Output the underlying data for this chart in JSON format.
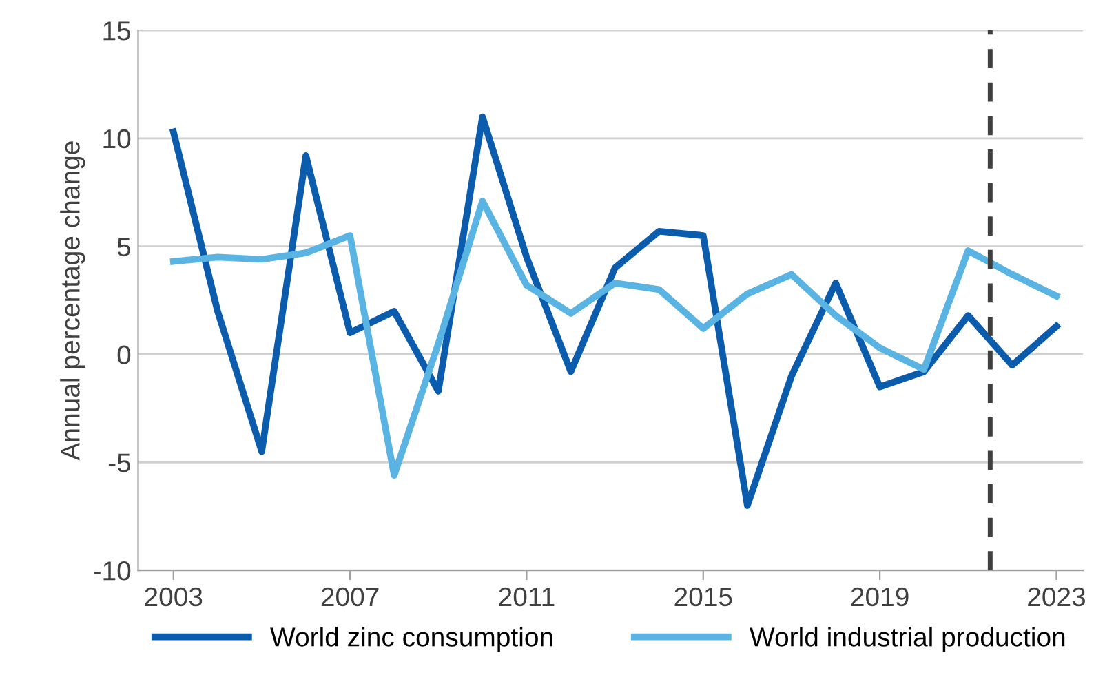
{
  "chart_data": {
    "type": "line",
    "ylabel": "Annual percentage change",
    "x": [
      2003,
      2004,
      2005,
      2006,
      2007,
      2008,
      2009,
      2010,
      2011,
      2012,
      2013,
      2014,
      2015,
      2016,
      2017,
      2018,
      2019,
      2020,
      2021,
      2022,
      2023
    ],
    "series": [
      {
        "name": "World zinc consumption",
        "color": "#0b5cad",
        "values": [
          10.3,
          2.0,
          -4.5,
          9.2,
          1.0,
          2.0,
          -1.7,
          11.0,
          4.5,
          -0.8,
          4.0,
          5.7,
          5.5,
          -7.0,
          -1.0,
          3.3,
          -1.5,
          -0.8,
          1.8,
          -0.5,
          1.3
        ]
      },
      {
        "name": "World industrial production",
        "color": "#5ab4e3",
        "values": [
          4.3,
          4.5,
          4.4,
          4.7,
          5.5,
          -5.6,
          0.5,
          7.1,
          3.2,
          1.9,
          3.3,
          3.0,
          1.2,
          2.8,
          3.7,
          1.8,
          0.3,
          -0.7,
          4.8,
          3.7,
          2.7
        ]
      }
    ],
    "xlim": [
      2002.2,
      2023.6
    ],
    "xticks": [
      2003,
      2007,
      2011,
      2015,
      2019,
      2023
    ],
    "ylim": [
      -10,
      15
    ],
    "yticks": [
      -10,
      -5,
      0,
      5,
      10,
      15
    ],
    "ref_lines": [
      {
        "axis": "x",
        "value": 2021.5,
        "color": "#404040",
        "line_style": "dashed"
      }
    ],
    "grid": "y",
    "legend": "bottom",
    "marker": "none",
    "line_style": "solid"
  }
}
